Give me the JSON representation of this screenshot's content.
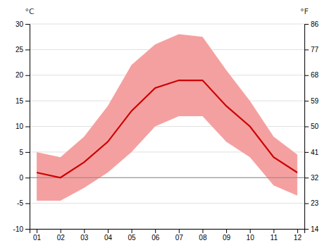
{
  "chart_data": {
    "type": "line",
    "categories": [
      "01",
      "02",
      "03",
      "04",
      "05",
      "06",
      "07",
      "08",
      "09",
      "10",
      "11",
      "12"
    ],
    "series": [
      {
        "type": "area",
        "color": "#f5a0a0",
        "low": [
          -4.5,
          -4.5,
          -2.0,
          1.0,
          5.0,
          10.0,
          12.0,
          12.0,
          7.0,
          4.0,
          -1.5,
          -3.5
        ],
        "high": [
          5.0,
          4.0,
          8.0,
          14.0,
          22.0,
          26.0,
          28.0,
          27.5,
          21.0,
          15.0,
          8.0,
          4.5
        ]
      },
      {
        "type": "line",
        "color": "#cc0000",
        "values": [
          1.0,
          0.0,
          3.0,
          7.0,
          13.0,
          17.5,
          19.0,
          19.0,
          14.0,
          10.0,
          4.0,
          1.0
        ]
      }
    ],
    "hline": {
      "value": 0,
      "color": "#888888"
    },
    "ylim": [
      -10,
      30
    ],
    "yticks": [
      -10,
      -5,
      0,
      5,
      10,
      15,
      20,
      25,
      30
    ],
    "y2lim": [
      14,
      86
    ],
    "y2ticks": [
      14,
      23,
      32,
      41,
      50,
      59,
      68,
      77,
      86
    ],
    "y_label": "°C",
    "y2_label": "°F",
    "grid": true
  }
}
